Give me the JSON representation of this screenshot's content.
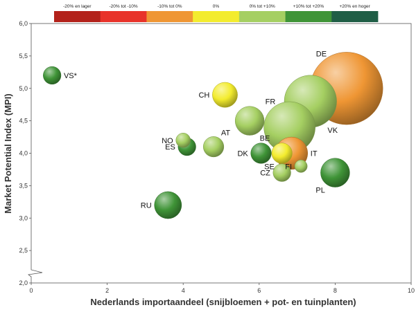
{
  "colors": {
    "dark_red": "#b3221b",
    "red": "#e8332a",
    "orange": "#ef9634",
    "yellow": "#f3ec2e",
    "light_green": "#a5cf62",
    "green": "#3f9437",
    "dark_green": "#1f5e46"
  },
  "chart_data": {
    "type": "scatter",
    "title": "",
    "xlabel": "Nederlands importaandeel (snijbloemen + pot- en tuinplanten)",
    "ylabel": "Market Potential Index (MPI)",
    "xlim": [
      0,
      10
    ],
    "ylim": [
      2.0,
      6.0
    ],
    "y_axis_break": true,
    "grid": false,
    "x_ticks": [
      "0",
      "2",
      "4",
      "6",
      "8",
      "10"
    ],
    "y_ticks": [
      "2,0",
      "2,5",
      "3,0",
      "3,5",
      "4,0",
      "4,5",
      "5,0",
      "5,5",
      "6,0"
    ],
    "legend": {
      "placement": "top",
      "items": [
        {
          "label": "-20% en lager",
          "color": "dark_red"
        },
        {
          "label": "-20% tot -10%",
          "color": "red"
        },
        {
          "label": "-10% tot 0%",
          "color": "orange"
        },
        {
          "label": "0%",
          "color": "yellow"
        },
        {
          "label": "0% tot +10%",
          "color": "light_green"
        },
        {
          "label": "+10% tot +20%",
          "color": "green"
        },
        {
          "label": "+20% en hoger",
          "color": "dark_green"
        }
      ]
    },
    "points": [
      {
        "label": "VS*",
        "x": 0.55,
        "y": 5.2,
        "size": 3,
        "color": "green",
        "label_pos": "right"
      },
      {
        "label": "DE",
        "x": 8.3,
        "y": 5.0,
        "size": 50,
        "color": "orange",
        "label_pos": "top-left"
      },
      {
        "label": "CH",
        "x": 5.1,
        "y": 4.9,
        "size": 6,
        "color": "yellow",
        "label_pos": "left"
      },
      {
        "label": "VK",
        "x": 7.35,
        "y": 4.8,
        "size": 26,
        "color": "light_green",
        "label_pos": "bottom-right"
      },
      {
        "label": "FR",
        "x": 6.8,
        "y": 4.4,
        "size": 25,
        "color": "light_green",
        "label_pos": "top-left"
      },
      {
        "label": "BE",
        "x": 5.75,
        "y": 4.5,
        "size": 8,
        "color": "light_green",
        "label_pos": "bottom-right"
      },
      {
        "label": "NO",
        "x": 4.0,
        "y": 4.2,
        "size": 2,
        "color": "light_green",
        "label_pos": "left"
      },
      {
        "label": "AT",
        "x": 4.8,
        "y": 4.1,
        "size": 4,
        "color": "light_green",
        "label_pos": "top-right"
      },
      {
        "label": "ES",
        "x": 4.1,
        "y": 4.1,
        "size": 3,
        "color": "green",
        "label_pos": "left"
      },
      {
        "label": "DK",
        "x": 6.05,
        "y": 4.0,
        "size": 4,
        "color": "green",
        "label_pos": "left"
      },
      {
        "label": "SE",
        "x": 6.6,
        "y": 4.0,
        "size": 4,
        "color": "yellow",
        "label_pos": "bottom-left"
      },
      {
        "label": "IT",
        "x": 6.85,
        "y": 4.0,
        "size": 10,
        "color": "orange",
        "label_pos": "right"
      },
      {
        "label": "FI",
        "x": 7.1,
        "y": 3.8,
        "size": 1.5,
        "color": "light_green",
        "label_pos": "left"
      },
      {
        "label": "CZ",
        "x": 6.6,
        "y": 3.7,
        "size": 3,
        "color": "light_green",
        "label_pos": "left"
      },
      {
        "label": "PL",
        "x": 8.0,
        "y": 3.7,
        "size": 8,
        "color": "green",
        "label_pos": "bottom-left"
      },
      {
        "label": "RU",
        "x": 3.6,
        "y": 3.2,
        "size": 7,
        "color": "green",
        "label_pos": "left"
      }
    ]
  }
}
